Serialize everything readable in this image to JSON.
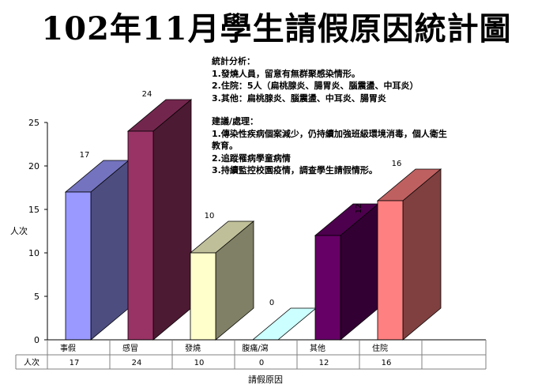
{
  "title": "102年11月學生請假原因統計圖",
  "notes": {
    "analysis": [
      "統計分析：",
      "1.發燒人員，留意有無群聚感染情形。",
      "2.住院：5人（扁桃腺炎、腸胃炎、腦震盪、中耳炎）",
      "3.其他：扁桃腺炎、腦震盪、中耳炎、腸胃炎"
    ],
    "suggestion": [
      "建議/處理：",
      "1.傳染性疾病個案減少，仍持續加強班級環境消毒，個人衛生教育。",
      "2.追蹤罹病學童病情",
      "3.持續監控校園疫情，調查學生請假情形。"
    ]
  },
  "chart_data": {
    "type": "bar",
    "style": "3d",
    "categories": [
      "事假",
      "感冒",
      "發燒",
      "腹痛/瀉",
      "其他",
      "住院"
    ],
    "series": [
      {
        "name": "人次",
        "values": [
          17,
          24,
          10,
          0,
          12,
          16
        ]
      }
    ],
    "data_labels": [
      "17",
      "24",
      "10",
      "0",
      "12",
      "16"
    ],
    "ylabel": "人次",
    "xlabel": "請假原因",
    "ylim": [
      0,
      25
    ],
    "yticks": [
      0,
      5,
      10,
      15,
      20,
      25
    ],
    "grid": false,
    "data_table": true,
    "bar_colors": [
      {
        "front": "#9999ff",
        "side": "#4d4d80",
        "top": "#7373bf"
      },
      {
        "front": "#993366",
        "side": "#4d1a33",
        "top": "#73264d"
      },
      {
        "front": "#ffffcc",
        "side": "#808066",
        "top": "#bfbf99"
      },
      {
        "front": "#ccffff",
        "side": "#668080",
        "top": "#99bfbf"
      },
      {
        "front": "#660066",
        "side": "#330033",
        "top": "#4d004d"
      },
      {
        "front": "#ff8080",
        "side": "#804040",
        "top": "#bf6060"
      }
    ]
  }
}
